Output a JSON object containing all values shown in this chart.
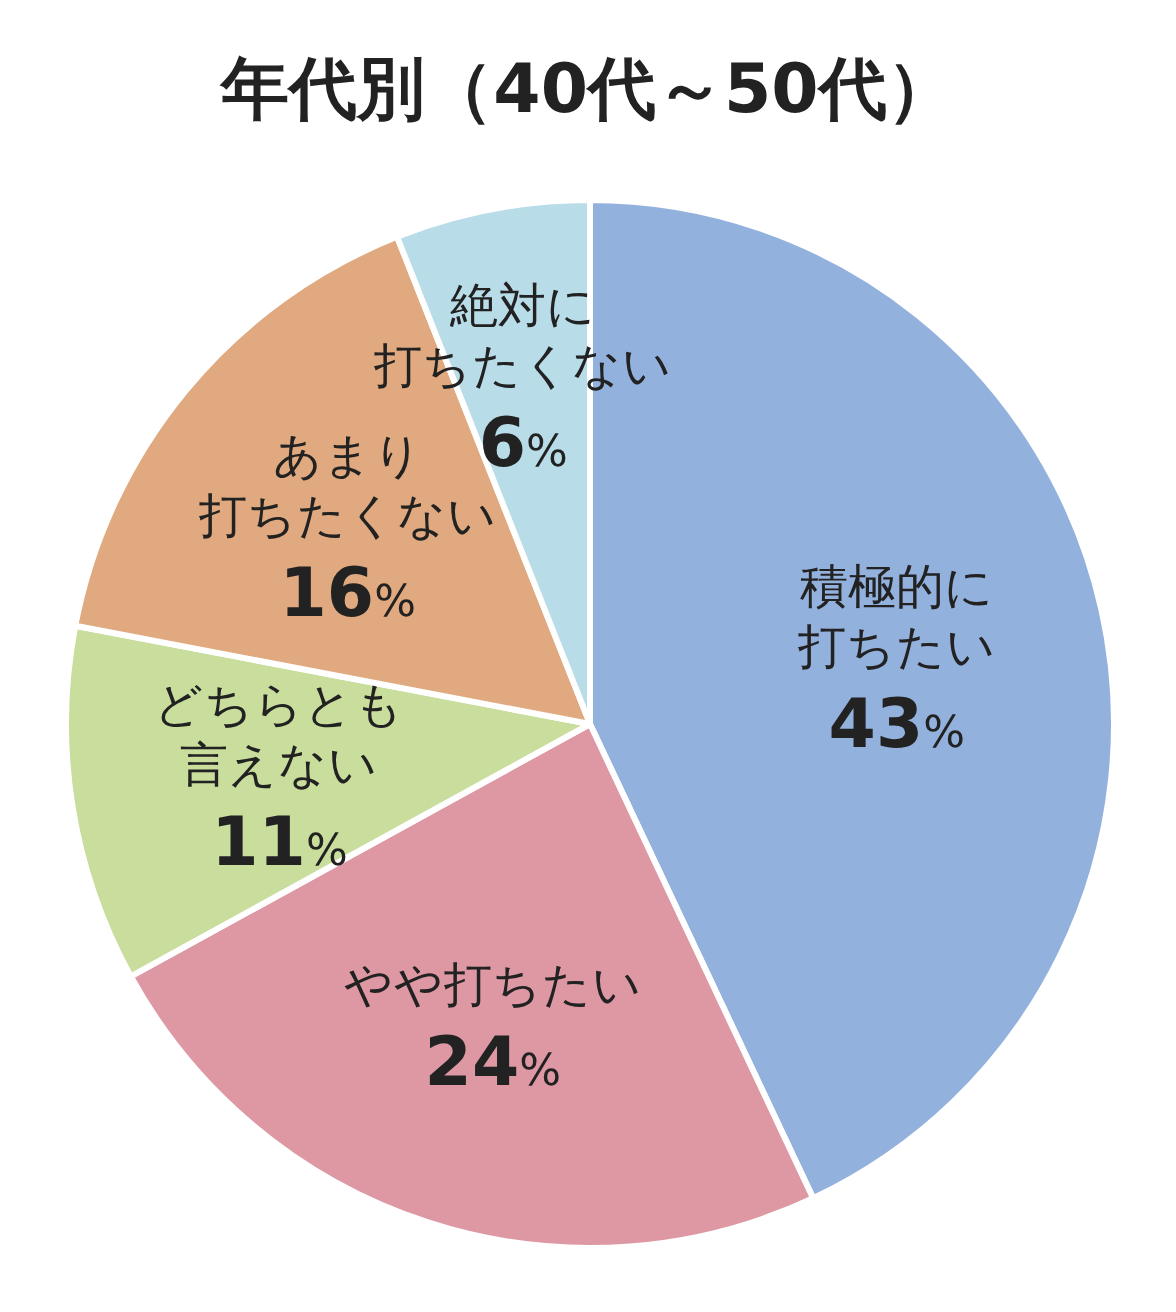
{
  "chart_data": {
    "type": "pie",
    "title": "年代別（40代～50代）",
    "categories": [
      "積極的に打ちたい",
      "やや打ちたい",
      "どちらとも言えない",
      "あまり打ちたくない",
      "絶対に打ちたくない"
    ],
    "values": [
      43,
      24,
      11,
      16,
      6
    ],
    "value_labels": [
      "43%",
      "24%",
      "11%",
      "16%",
      "6%"
    ],
    "colors": [
      "#93b1dd",
      "#dd98a4",
      "#c9dd9d",
      "#e1a97f",
      "#b9dce9"
    ]
  }
}
